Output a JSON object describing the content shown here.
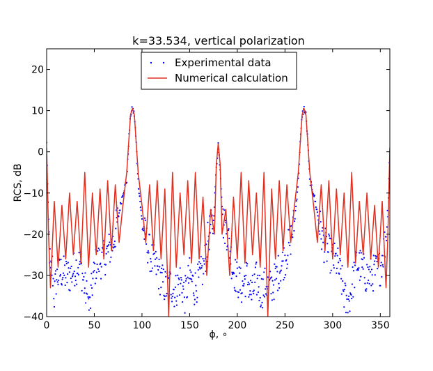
{
  "chart_data": {
    "type": "line",
    "title": "k=33.534, vertical polarization",
    "xlabel": "ϕ, ∘",
    "ylabel": "RCS, dB",
    "xlim": [
      0,
      360
    ],
    "ylim": [
      -40,
      25
    ],
    "xticks": [
      0,
      50,
      100,
      150,
      200,
      250,
      300,
      350
    ],
    "yticks": [
      -40,
      -30,
      -20,
      -10,
      0,
      10,
      20
    ],
    "xtick_labels": [
      "0",
      "50",
      "100",
      "150",
      "200",
      "250",
      "300",
      "350"
    ],
    "ytick_labels": [
      "−40",
      "−30",
      "−20",
      "−10",
      "0",
      "10",
      "20"
    ],
    "grid": false,
    "legend_position": "top-center",
    "series": [
      {
        "name": "Experimental data",
        "style": "dots",
        "color": "#0000ff",
        "x": [
          0,
          2,
          4,
          6,
          8,
          10,
          15,
          20,
          25,
          30,
          35,
          40,
          45,
          48,
          52,
          60,
          65,
          70,
          75,
          80,
          84,
          86,
          88,
          90,
          92,
          94,
          96,
          100,
          105,
          110,
          115,
          120,
          125,
          130,
          135,
          140,
          145,
          150,
          155,
          160,
          165,
          170,
          175,
          178,
          180,
          182,
          185,
          190,
          195,
          200,
          205,
          210,
          215,
          220,
          225,
          230,
          235,
          240,
          245,
          250,
          255,
          260,
          264,
          266,
          268,
          270,
          272,
          274,
          276,
          280,
          285,
          290,
          295,
          300,
          305,
          310,
          315,
          320,
          325,
          330,
          335,
          340,
          345,
          350,
          355,
          358,
          360
        ],
        "y": [
          2,
          -18,
          -30,
          -28,
          -35,
          -31,
          -29,
          -30,
          -30,
          -28,
          -27,
          -33,
          -38,
          -32,
          -27,
          -26,
          -24,
          -22,
          -16,
          -10,
          -7,
          2,
          9,
          10.5,
          9,
          2,
          -7,
          -17,
          -22,
          -26,
          -28,
          -31,
          -33,
          -32,
          -34,
          -31,
          -35,
          -30,
          -33,
          -31,
          -28,
          -20,
          -17,
          -4,
          2,
          -4,
          -17,
          -20,
          -28,
          -31,
          -33,
          -30,
          -35,
          -31,
          -34,
          -32,
          -33,
          -31,
          -28,
          -26,
          -22,
          -17,
          -7,
          2,
          9,
          10.5,
          9,
          2,
          -7,
          -10,
          -16,
          -22,
          -24,
          -26,
          -27,
          -32,
          -38,
          -33,
          -27,
          -28,
          -30,
          -30,
          -29,
          -28,
          -22,
          -15,
          2
        ]
      },
      {
        "name": "Numerical calculation",
        "style": "line",
        "color": "#e03020",
        "x": [
          0,
          2,
          4,
          8,
          12,
          16,
          20,
          24,
          28,
          32,
          36,
          40,
          44,
          48,
          52,
          56,
          60,
          64,
          68,
          72,
          76,
          80,
          84,
          86,
          88,
          90,
          92,
          94,
          96,
          100,
          104,
          108,
          112,
          116,
          120,
          124,
          128,
          132,
          136,
          140,
          144,
          148,
          152,
          156,
          160,
          164,
          168,
          172,
          176,
          178,
          180,
          182,
          184,
          188,
          192,
          196,
          200,
          204,
          208,
          212,
          216,
          220,
          224,
          228,
          232,
          236,
          240,
          244,
          248,
          252,
          256,
          260,
          264,
          266,
          268,
          270,
          272,
          274,
          276,
          280,
          284,
          288,
          292,
          296,
          300,
          304,
          308,
          312,
          316,
          320,
          324,
          328,
          332,
          336,
          340,
          344,
          348,
          352,
          356,
          358,
          360
        ],
        "y": [
          1,
          -20,
          -33,
          -12,
          -28,
          -13,
          -26,
          -10,
          -25,
          -12,
          -27,
          -5,
          -28,
          -10,
          -25,
          -9,
          -26,
          -7,
          -24,
          -8,
          -22,
          -13,
          -5,
          2,
          9,
          10.5,
          9,
          2,
          -5,
          -13,
          -22,
          -8,
          -24,
          -7,
          -26,
          -9,
          -40,
          -5,
          -28,
          -10,
          -25,
          -7,
          -27,
          -5,
          -26,
          -11,
          -30,
          -14,
          -20,
          -3,
          2,
          -3,
          -20,
          -14,
          -30,
          -11,
          -26,
          -5,
          -27,
          -7,
          -25,
          -10,
          -28,
          -5,
          -40,
          -9,
          -26,
          -7,
          -24,
          -8,
          -22,
          -13,
          -5,
          2,
          9,
          10.5,
          9,
          2,
          -5,
          -13,
          -22,
          -8,
          -24,
          -7,
          -26,
          -9,
          -25,
          -10,
          -28,
          -5,
          -27,
          -12,
          -25,
          -10,
          -26,
          -13,
          -28,
          -12,
          -33,
          -20,
          1
        ]
      }
    ]
  }
}
